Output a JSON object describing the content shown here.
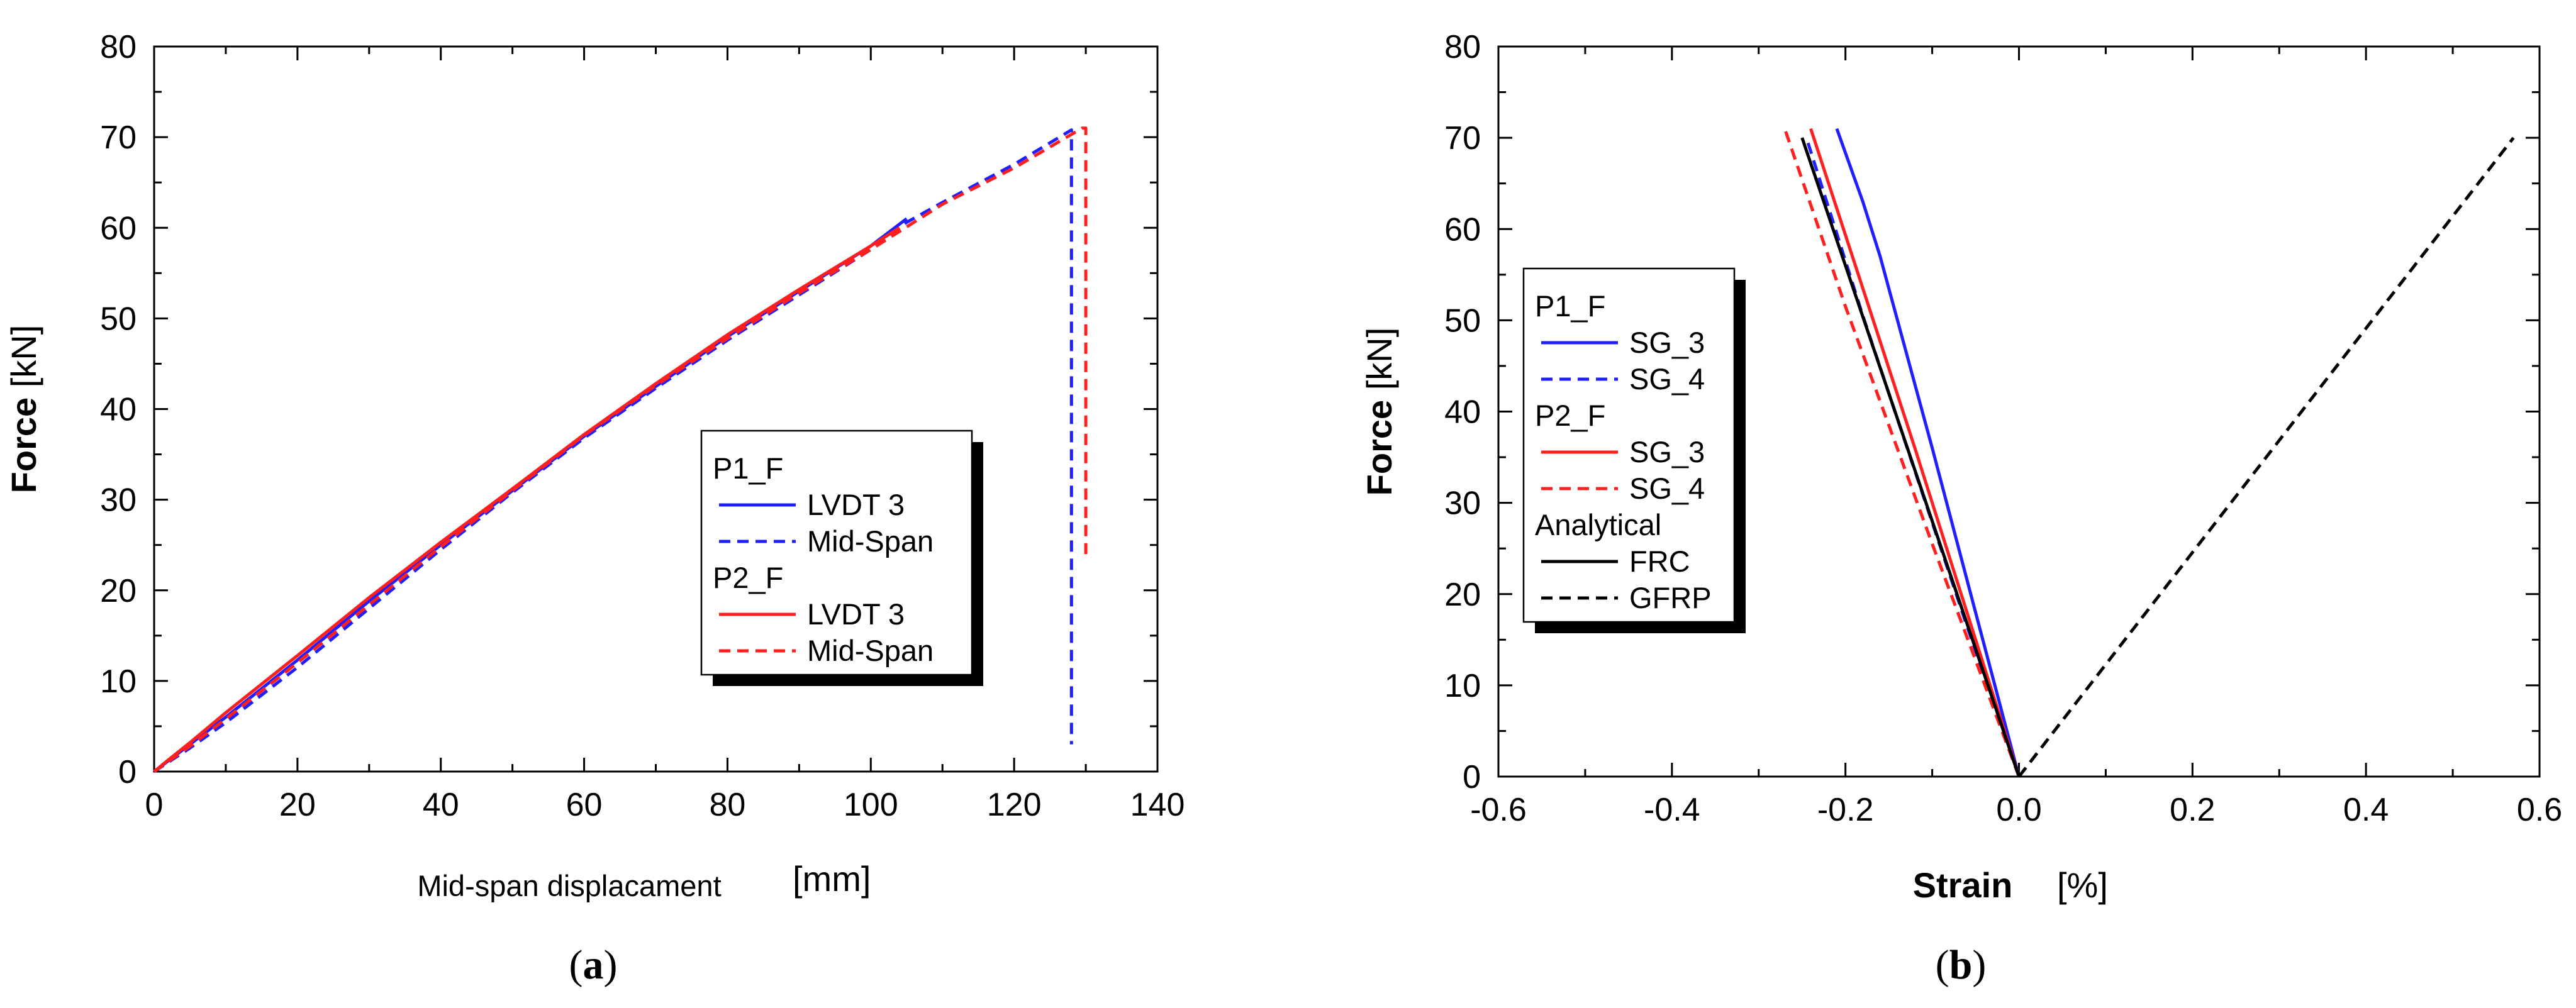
{
  "chart_data": [
    {
      "type": "line",
      "panel": "a",
      "xlabel_main": "Mid-span displacament",
      "xlabel_unit": "[mm]",
      "ylabel": "Force",
      "ylabel_unit": "[kN]",
      "xlim": [
        0,
        140
      ],
      "ylim": [
        0,
        80
      ],
      "xticks": [
        0,
        20,
        40,
        60,
        80,
        100,
        120,
        140
      ],
      "yticks": [
        0,
        10,
        20,
        30,
        40,
        50,
        60,
        70,
        80
      ],
      "legend_groups": [
        {
          "title": "P1_F",
          "entries": [
            {
              "label": "LVDT 3",
              "color": "#1f1fff",
              "dash": "solid"
            },
            {
              "label": "Mid-Span",
              "color": "#1f1fff",
              "dash": "dashed"
            }
          ]
        },
        {
          "title": "P2_F",
          "entries": [
            {
              "label": "LVDT 3",
              "color": "#ff1f1f",
              "dash": "solid"
            },
            {
              "label": "Mid-Span",
              "color": "#ff1f1f",
              "dash": "dashed"
            }
          ]
        }
      ],
      "series": [
        {
          "name": "P1_F LVDT 3",
          "color": "#1f1fff",
          "dash": "solid",
          "x": [
            0,
            2,
            5,
            10,
            20,
            30,
            40,
            50,
            60,
            70,
            80,
            90,
            100,
            105
          ],
          "y": [
            0,
            1.2,
            3,
            6,
            12.3,
            18.8,
            25,
            31,
            37,
            42.5,
            48,
            53,
            58,
            61
          ]
        },
        {
          "name": "P1_F Mid-Span",
          "color": "#1f1fff",
          "dash": "dashed",
          "x": [
            0,
            5,
            10,
            20,
            30,
            40,
            50,
            60,
            70,
            80,
            90,
            100,
            105,
            110,
            120,
            128,
            128
          ],
          "y": [
            0,
            2.6,
            5.4,
            11.5,
            18,
            24.5,
            30.8,
            36.8,
            42.3,
            47.6,
            52.6,
            57.6,
            60.6,
            62.8,
            67,
            70.8,
            3
          ]
        },
        {
          "name": "P2_F LVDT 3",
          "color": "#ff1f1f",
          "dash": "solid",
          "x": [
            0,
            2,
            5,
            10,
            20,
            30,
            40,
            50,
            60,
            70,
            80,
            90,
            100,
            104
          ],
          "y": [
            0,
            1.3,
            3.2,
            6.5,
            12.8,
            19.2,
            25.3,
            31.2,
            37.2,
            42.8,
            48.2,
            53.2,
            58,
            60
          ]
        },
        {
          "name": "P2_F Mid-Span",
          "color": "#ff1f1f",
          "dash": "dashed",
          "x": [
            0,
            5,
            10,
            20,
            30,
            40,
            50,
            60,
            70,
            80,
            90,
            100,
            110,
            120,
            129.5,
            130,
            130
          ],
          "y": [
            0,
            2.8,
            5.8,
            12,
            18.4,
            24.8,
            31,
            37.1,
            42.6,
            47.8,
            52.8,
            57.6,
            62.6,
            66.6,
            71,
            71,
            24
          ]
        }
      ]
    },
    {
      "type": "line",
      "panel": "b",
      "xlabel_main": "Strain",
      "xlabel_unit": "[%]",
      "ylabel": "Force",
      "ylabel_unit": "[kN]",
      "xlim": [
        -0.6,
        0.6
      ],
      "ylim": [
        0,
        80
      ],
      "xticks": [
        -0.6,
        -0.4,
        -0.2,
        0.0,
        0.2,
        0.4,
        0.6
      ],
      "xtick_labels": [
        "-0.6",
        "-0.4",
        "-0.2",
        "0.0",
        "0.2",
        "0.4",
        "0.6"
      ],
      "yticks": [
        0,
        10,
        20,
        30,
        40,
        50,
        60,
        70,
        80
      ],
      "legend_groups": [
        {
          "title": "P1_F",
          "entries": [
            {
              "label": "SG_3",
              "color": "#1f1fff",
              "dash": "solid"
            },
            {
              "label": "SG_4",
              "color": "#1f1fff",
              "dash": "dashed"
            }
          ]
        },
        {
          "title": "P2_F",
          "entries": [
            {
              "label": "SG_3",
              "color": "#ff1f1f",
              "dash": "solid"
            },
            {
              "label": "SG_4",
              "color": "#ff1f1f",
              "dash": "dashed"
            }
          ]
        },
        {
          "title": "Analytical",
          "entries": [
            {
              "label": "FRC",
              "color": "#000000",
              "dash": "solid"
            },
            {
              "label": "GFRP",
              "color": "#000000",
              "dash": "dashed"
            }
          ]
        }
      ],
      "series": [
        {
          "name": "P1_F SG_3",
          "color": "#1f1fff",
          "dash": "solid",
          "x": [
            0,
            -0.05,
            -0.1,
            -0.14,
            -0.16,
            -0.18,
            -0.21
          ],
          "y": [
            0,
            18,
            36,
            50,
            57,
            63,
            71
          ]
        },
        {
          "name": "P1_F SG_4",
          "color": "#1f1fff",
          "dash": "dashed",
          "x": [
            0,
            -0.06,
            -0.12,
            -0.18,
            -0.245
          ],
          "y": [
            0,
            16.5,
            33.5,
            50.5,
            70
          ]
        },
        {
          "name": "P2_F SG_3",
          "color": "#ff1f1f",
          "dash": "solid",
          "x": [
            0,
            -0.06,
            -0.12,
            -0.18,
            -0.24
          ],
          "y": [
            0,
            18,
            36,
            53.5,
            71
          ]
        },
        {
          "name": "P2_F SG_4",
          "color": "#ff1f1f",
          "dash": "dashed",
          "x": [
            0,
            -0.1,
            -0.2,
            -0.27
          ],
          "y": [
            0,
            25.5,
            51.5,
            71
          ]
        },
        {
          "name": "Analytical FRC",
          "color": "#000000",
          "dash": "solid",
          "x": [
            0,
            -0.25
          ],
          "y": [
            0,
            70
          ]
        },
        {
          "name": "Analytical GFRP",
          "color": "#000000",
          "dash": "dashed",
          "x": [
            0,
            0.57
          ],
          "y": [
            0,
            70
          ]
        }
      ]
    }
  ],
  "panel_labels": {
    "a": {
      "open": "(",
      "letter": "a",
      "close": ")"
    },
    "b": {
      "open": "(",
      "letter": "b",
      "close": ")"
    }
  }
}
